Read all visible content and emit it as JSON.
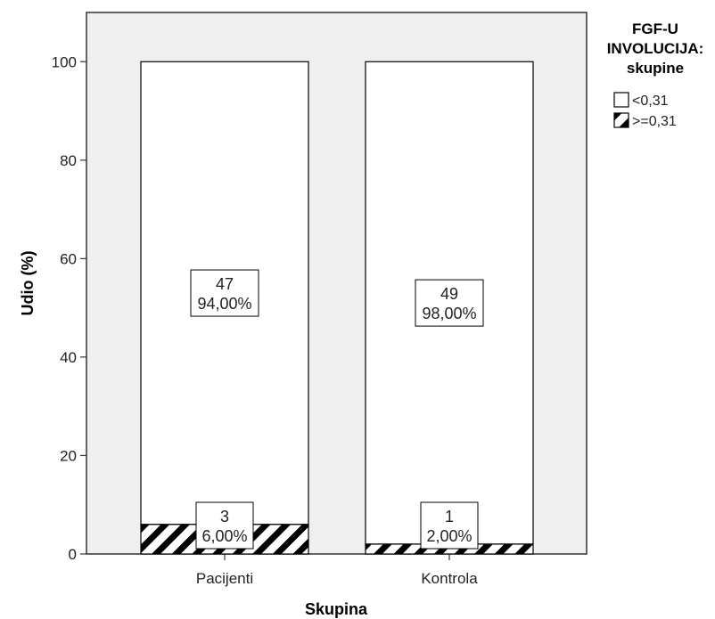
{
  "chart_data": {
    "type": "bar",
    "stacked": true,
    "categories": [
      "Pacijenti",
      "Kontrola"
    ],
    "series": [
      {
        "name": "<0,31",
        "values": [
          94.0,
          98.0
        ],
        "counts": [
          "47",
          "49"
        ],
        "percent_labels": [
          "94,00%",
          "98,00%"
        ],
        "fill": "#ffffff",
        "pattern": "none"
      },
      {
        "name": ">=0,31",
        "values": [
          6.0,
          2.0
        ],
        "counts": [
          "3",
          "1"
        ],
        "percent_labels": [
          "6,00%",
          "2,00%"
        ],
        "fill": "#ffffff",
        "pattern": "diagonal-hatch"
      }
    ],
    "xlabel": "Skupina",
    "ylabel": "Udio (%)",
    "ylim": [
      0,
      110
    ],
    "yticks": [
      0,
      20,
      40,
      60,
      80,
      100
    ],
    "ytick_labels": [
      "0",
      "20",
      "40",
      "60",
      "80",
      "100"
    ],
    "grid": false,
    "legend": {
      "title_lines": [
        "FGF-U",
        "INVOLUCIJA:",
        "skupine"
      ],
      "placement": "right"
    },
    "colors": {
      "plot_background": "#efefef",
      "bar_fill": "#ffffff",
      "outline": "#000000",
      "hatch": "#000000"
    }
  }
}
